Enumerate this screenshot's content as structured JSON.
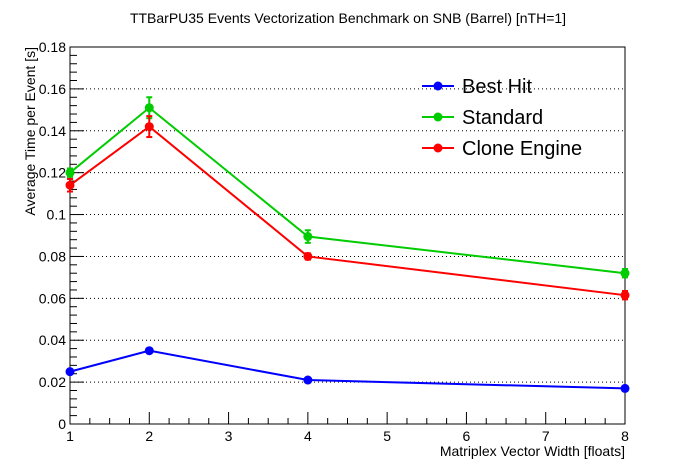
{
  "chart_data": {
    "type": "line",
    "title": "TTBarPU35 Events Vectorization Benchmark on SNB (Barrel) [nTH=1]",
    "xlabel": "Matriplex Vector Width [floats]",
    "ylabel": "Average Time per Event [s]",
    "xlim": [
      1,
      8
    ],
    "ylim": [
      0,
      0.18
    ],
    "x_ticks": [
      "1",
      "2",
      "3",
      "4",
      "5",
      "6",
      "7",
      "8"
    ],
    "y_ticks": [
      "0",
      "0.02",
      "0.04",
      "0.06",
      "0.08",
      "0.1",
      "0.12",
      "0.14",
      "0.16",
      "0.18"
    ],
    "grid": "horizontal dotted",
    "legend_position": "top-right",
    "series": [
      {
        "name": "Best Hit",
        "color": "#0000ff",
        "x": [
          1,
          2,
          4,
          8
        ],
        "y": [
          0.025,
          0.035,
          0.021,
          0.017
        ],
        "err": [
          0.0008,
          0.0008,
          0.0008,
          0.0008
        ]
      },
      {
        "name": "Standard",
        "color": "#00cc00",
        "x": [
          1,
          2,
          4,
          8
        ],
        "y": [
          0.12,
          0.151,
          0.0895,
          0.072
        ],
        "err": [
          0.002,
          0.005,
          0.003,
          0.002
        ]
      },
      {
        "name": "Clone Engine",
        "color": "#ff0000",
        "x": [
          1,
          2,
          4,
          8
        ],
        "y": [
          0.114,
          0.142,
          0.08,
          0.0615
        ],
        "err": [
          0.003,
          0.005,
          0.0015,
          0.002
        ]
      }
    ]
  }
}
